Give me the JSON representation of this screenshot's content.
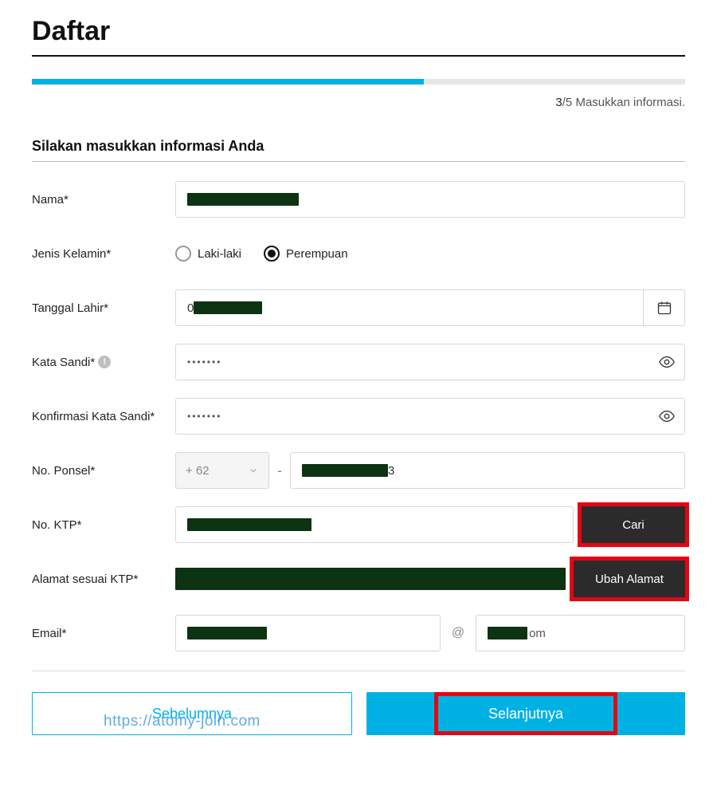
{
  "page": {
    "title": "Daftar",
    "progress_percent": 60,
    "step_current": "3",
    "step_total": "/5",
    "step_label": " Masukkan informasi.",
    "subtitle": "Silakan masukkan informasi Anda"
  },
  "labels": {
    "name": "Nama*",
    "gender": "Jenis Kelamin*",
    "dob": "Tanggal Lahir*",
    "password": "Kata Sandi*",
    "confirm_password": "Konfirmasi Kata Sandi*",
    "phone": "No. Ponsel*",
    "ktp": "No. KTP*",
    "address": "Alamat sesuai KTP*",
    "email": "Email*"
  },
  "gender": {
    "male": "Laki-laki",
    "female": "Perempuan",
    "selected": "female"
  },
  "phone": {
    "code": "+ 62",
    "separator": "-"
  },
  "password": {
    "masked": "•••••••",
    "confirm_masked": "•••••••"
  },
  "email": {
    "at": "@",
    "domain_suffix": "om"
  },
  "buttons": {
    "search": "Cari",
    "change_address": "Ubah Alamat",
    "prev": "Sebelumnya",
    "next": "Selanjutnya"
  },
  "watermark": "https://atomy-join.com",
  "colors": {
    "accent": "#00b2e3",
    "highlight": "#e30613",
    "dark_btn": "#2b2b2b",
    "redact": "#0d3312"
  }
}
